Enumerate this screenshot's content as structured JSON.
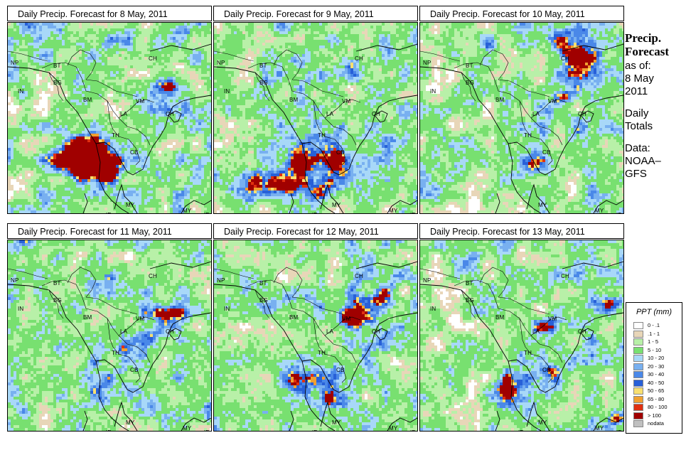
{
  "panels": [
    {
      "title": "Daily Precip. Forecast for  8 May, 2011"
    },
    {
      "title": "Daily Precip. Forecast for  9 May, 2011"
    },
    {
      "title": "Daily Precip. Forecast for  10 May, 2011"
    },
    {
      "title": "Daily Precip. Forecast for  11 May, 2011"
    },
    {
      "title": "Daily Precip. Forecast for  12 May, 2011"
    },
    {
      "title": "Daily Precip. Forecast for  13 May, 2011"
    }
  ],
  "map_labels": {
    "np": "NP",
    "bt": "BT",
    "bg": "BG",
    "in": "IN",
    "bm": "BM",
    "ch": "CH",
    "vm": "VM",
    "la": "LA",
    "th": "TH",
    "cb": "CB",
    "my": "MY",
    "my2": "MY",
    "id": "ID",
    "id2": "ID",
    "ch2": "CH"
  },
  "side": {
    "title_line1": "Precip.",
    "title_line2": "Forecast",
    "asof": "as of:",
    "date_line1": "8 May",
    "date_line2": "2011",
    "daily1": "Daily",
    "daily2": "Totals",
    "data1": "Data:",
    "data2": "NOAA–",
    "data3": "GFS"
  },
  "legend": {
    "title": "PPT (mm)",
    "items": [
      {
        "label": "0 - .1",
        "color": "#ffffff"
      },
      {
        "label": ".1 - 1",
        "color": "#e8d6b8"
      },
      {
        "label": "1 - 5",
        "color": "#b8f0a8"
      },
      {
        "label": "5 - 10",
        "color": "#78e070"
      },
      {
        "label": "10 - 20",
        "color": "#a8d8f8"
      },
      {
        "label": "20 - 30",
        "color": "#78b0f0"
      },
      {
        "label": "30 - 40",
        "color": "#4a88e8"
      },
      {
        "label": "40 - 50",
        "color": "#2860d8"
      },
      {
        "label": "50 - 65",
        "color": "#f8e070"
      },
      {
        "label": "65 - 80",
        "color": "#f0a030"
      },
      {
        "label": "80 - 100",
        "color": "#e03010"
      },
      {
        "label": "> 100",
        "color": "#a00000"
      },
      {
        "label": "nodata",
        "color": "#c0c0c0"
      }
    ]
  }
}
